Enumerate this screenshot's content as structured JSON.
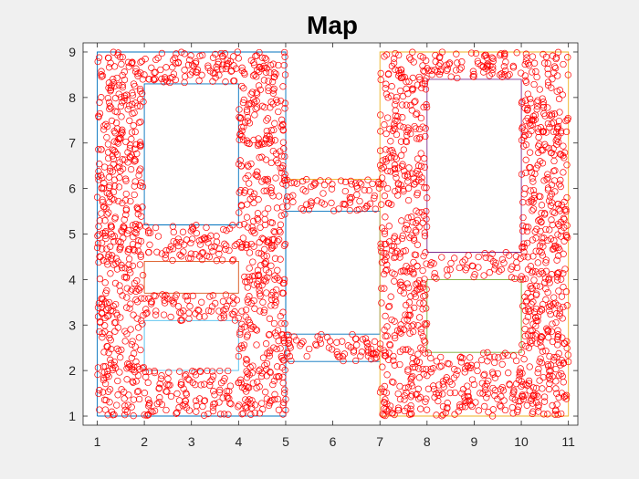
{
  "chart_data": {
    "type": "scatter",
    "title": "Map",
    "xlabel": "",
    "ylabel": "",
    "xlim": [
      0.7,
      11.2
    ],
    "ylim": [
      0.8,
      9.2
    ],
    "xticks": [
      1,
      2,
      3,
      4,
      5,
      6,
      7,
      8,
      9,
      10,
      11
    ],
    "yticks": [
      1,
      2,
      3,
      4,
      5,
      6,
      7,
      8,
      9
    ],
    "xtick_labels": [
      "1",
      "2",
      "3",
      "4",
      "5",
      "6",
      "7",
      "8",
      "9",
      "10",
      "11"
    ],
    "ytick_labels": [
      "1",
      "2",
      "3",
      "4",
      "5",
      "6",
      "7",
      "8",
      "9"
    ],
    "grid": false,
    "colors": {
      "background": "#f0f0f0",
      "axes_background": "#ffffff",
      "axes_edge": "#262626",
      "marker": "#ff0000"
    },
    "marker": "circle-open",
    "walls": [
      {
        "x": [
          1,
          5,
          5,
          1,
          1
        ],
        "y": [
          1,
          1,
          9,
          9,
          1
        ],
        "color": "#0072bd"
      },
      {
        "x": [
          2,
          4,
          4,
          2,
          2
        ],
        "y": [
          5.2,
          5.2,
          8.3,
          8.3,
          5.2
        ],
        "color": "#0072bd"
      },
      {
        "x": [
          2,
          4,
          4,
          2,
          2
        ],
        "y": [
          3.7,
          3.7,
          4.4,
          4.4,
          3.7
        ],
        "color": "#d95319"
      },
      {
        "x": [
          2,
          4,
          4,
          2,
          2
        ],
        "y": [
          2.0,
          2.0,
          3.1,
          3.1,
          2.0
        ],
        "color": "#4dbeee"
      },
      {
        "x": [
          5,
          7,
          7,
          5,
          5
        ],
        "y": [
          2.8,
          2.8,
          5.5,
          5.5,
          2.8
        ],
        "color": "#0072bd"
      },
      {
        "x": [
          5,
          7
        ],
        "y": [
          6.2,
          6.2
        ],
        "color": "#edb120"
      },
      {
        "x": [
          5,
          7
        ],
        "y": [
          2.2,
          2.2
        ],
        "color": "#0072bd"
      },
      {
        "x": [
          7,
          11,
          11,
          7,
          7
        ],
        "y": [
          1,
          1,
          9,
          9,
          1
        ],
        "color": "#edb120"
      },
      {
        "x": [
          8,
          10,
          10,
          8,
          8
        ],
        "y": [
          4.6,
          4.6,
          8.4,
          8.4,
          4.6
        ],
        "color": "#7e2f8e"
      },
      {
        "x": [
          8,
          10,
          10,
          8,
          8
        ],
        "y": [
          2.4,
          2.4,
          4.0,
          4.0,
          2.4
        ],
        "color": "#77ac30"
      }
    ],
    "free_regions": [
      {
        "x": [
          1,
          5
        ],
        "y": [
          1,
          9
        ]
      },
      {
        "x": [
          5,
          7
        ],
        "y": [
          2.2,
          2.8
        ]
      },
      {
        "x": [
          5,
          7
        ],
        "y": [
          5.5,
          6.2
        ]
      },
      {
        "x": [
          7,
          11
        ],
        "y": [
          1,
          9
        ]
      }
    ],
    "obstacles": [
      {
        "x": [
          2,
          4
        ],
        "y": [
          5.2,
          8.3
        ]
      },
      {
        "x": [
          2,
          4
        ],
        "y": [
          3.7,
          4.4
        ]
      },
      {
        "x": [
          2,
          4
        ],
        "y": [
          2.0,
          3.1
        ]
      },
      {
        "x": [
          8,
          10
        ],
        "y": [
          4.6,
          8.4
        ]
      },
      {
        "x": [
          8,
          10
        ],
        "y": [
          2.4,
          4.0
        ]
      }
    ],
    "sample_count": 2600
  }
}
